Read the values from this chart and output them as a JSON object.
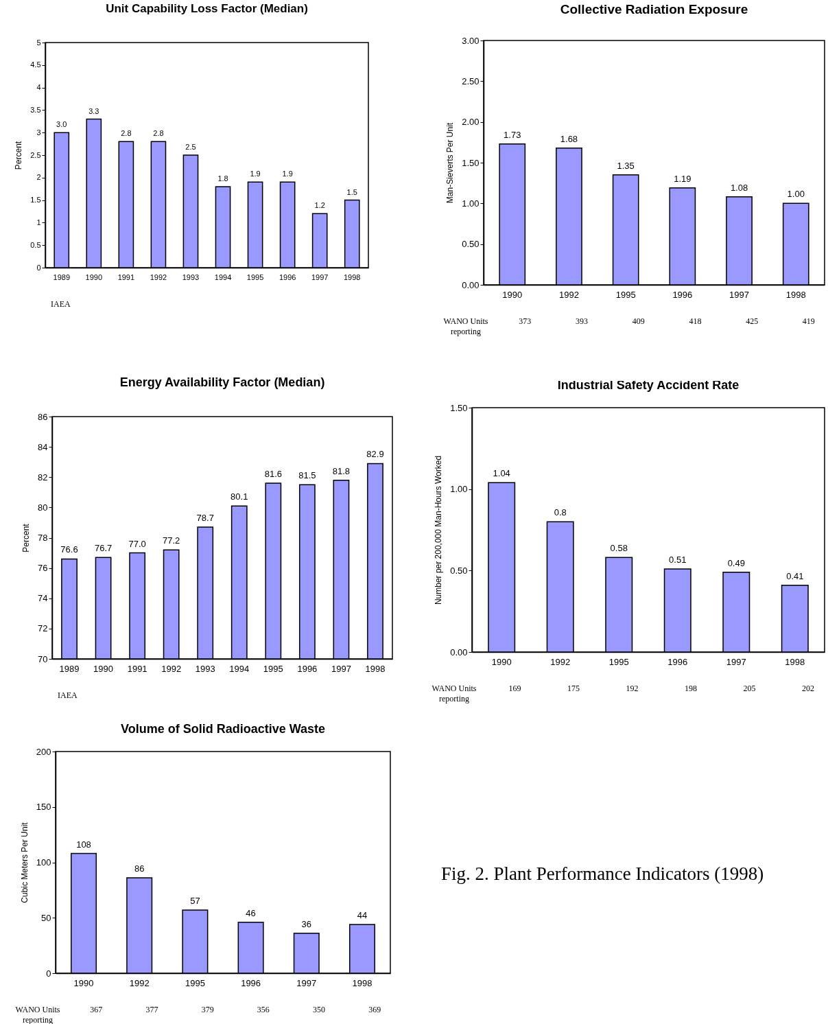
{
  "chart_data": [
    {
      "type": "bar",
      "title": "Unit Capability Loss Factor (Median)",
      "ylabel": "Percent",
      "categories": [
        "1989",
        "1990",
        "1991",
        "1992",
        "1993",
        "1994",
        "1995",
        "1996",
        "1997",
        "1998"
      ],
      "values": [
        3.0,
        3.3,
        2.8,
        2.8,
        2.5,
        1.8,
        1.9,
        1.9,
        1.2,
        1.5
      ],
      "value_labels": [
        "3.0",
        "3.3",
        "2.8",
        "2.8",
        "2.5",
        "1.8",
        "1.9",
        "1.9",
        "1.2",
        "1.5"
      ],
      "color": "#9999ff",
      "ylim": [
        0,
        5
      ],
      "yticks": [
        0,
        0.5,
        1,
        1.5,
        2,
        2.5,
        3,
        3.5,
        4,
        4.5,
        5
      ],
      "annotations": [
        "IAEA"
      ]
    },
    {
      "type": "bar",
      "title": "Collective Radiation Exposure",
      "ylabel": "Man-Sieverts Per Unit",
      "categories": [
        "1990",
        "1992",
        "1995",
        "1996",
        "1997",
        "1998"
      ],
      "values": [
        1.73,
        1.68,
        1.35,
        1.19,
        1.08,
        1.0
      ],
      "value_labels": [
        "1.73",
        "1.68",
        "1.35",
        "1.19",
        "1.08",
        "1.00"
      ],
      "color": "#9999ff",
      "ylim": [
        0,
        3
      ],
      "yticks": [
        {
          "value": 0,
          "label": "0.00"
        },
        {
          "value": 0.5,
          "label": "0.50"
        },
        {
          "value": 1,
          "label": "1.00"
        },
        {
          "value": 1.5,
          "label": "1.50"
        },
        {
          "value": 2,
          "label": "2.00"
        },
        {
          "value": 2.5,
          "label": "2.50"
        },
        {
          "value": 3,
          "label": "3.00"
        }
      ],
      "annotations": [
        "WANO Units reporting",
        "373",
        "393",
        "409",
        "418",
        "425",
        "419"
      ]
    },
    {
      "type": "bar",
      "title": "Energy Availability Factor (Median)",
      "ylabel": "Percent",
      "categories": [
        "1989",
        "1990",
        "1991",
        "1992",
        "1993",
        "1994",
        "1995",
        "1996",
        "1997",
        "1998"
      ],
      "values": [
        76.6,
        76.7,
        77.0,
        77.2,
        78.7,
        80.1,
        81.6,
        81.5,
        81.8,
        82.9
      ],
      "value_labels": [
        "76.6",
        "76.7",
        "77.0",
        "77.2",
        "78.7",
        "80.1",
        "81.6",
        "81.5",
        "81.8",
        "82.9"
      ],
      "color": "#9999ff",
      "ylim": [
        70,
        86
      ],
      "yticks": [
        70,
        72,
        74,
        76,
        78,
        80,
        82,
        84,
        86
      ],
      "annotations": [
        "IAEA"
      ]
    },
    {
      "type": "bar",
      "title": "Industrial Safety Accident Rate",
      "ylabel": "Number per 200,000 Man-Hours Worked",
      "categories": [
        "1990",
        "1992",
        "1995",
        "1996",
        "1997",
        "1998"
      ],
      "values": [
        1.04,
        0.8,
        0.58,
        0.51,
        0.49,
        0.41
      ],
      "value_labels": [
        "1.04",
        "0.8",
        "0.58",
        "0.51",
        "0.49",
        "0.41"
      ],
      "color": "#9999ff",
      "ylim": [
        0,
        1.5
      ],
      "yticks": [
        {
          "value": 0,
          "label": "0.00"
        },
        {
          "value": 0.5,
          "label": "0.50"
        },
        {
          "value": 1,
          "label": "1.00"
        },
        {
          "value": 1.5,
          "label": "1.50"
        }
      ],
      "annotations": [
        "WANO Units reporting",
        "169",
        "175",
        "192",
        "198",
        "205",
        "202"
      ]
    },
    {
      "type": "bar",
      "title": "Volume of Solid Radioactive Waste",
      "ylabel": "Cubic Meters Per Unit",
      "categories": [
        "1990",
        "1992",
        "1995",
        "1996",
        "1997",
        "1998"
      ],
      "values": [
        108,
        86,
        57,
        46,
        36,
        44
      ],
      "value_labels": [
        "108",
        "86",
        "57",
        "46",
        "36",
        "44"
      ],
      "color": "#9999ff",
      "ylim": [
        0,
        200
      ],
      "yticks": [
        0,
        50,
        100,
        150,
        200
      ],
      "annotations": [
        "WANO Units reporting",
        "367",
        "377",
        "379",
        "356",
        "350",
        "369"
      ]
    },
    {
      "type": "other",
      "annotations": [
        "Fig. 2. Plant Performance Indicators (1998)"
      ]
    }
  ]
}
